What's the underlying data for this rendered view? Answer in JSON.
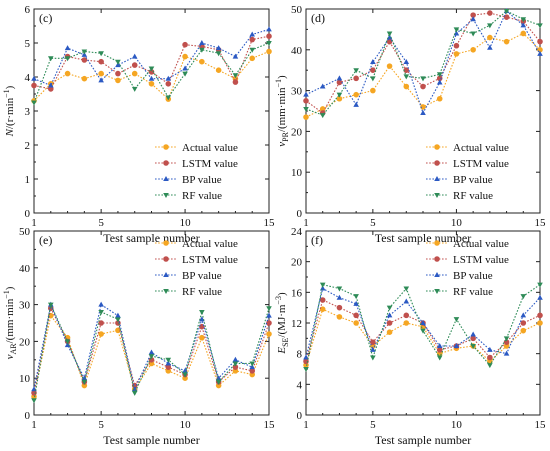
{
  "chart_data": [
    {
      "type": "line",
      "panel_label": "(c)",
      "xlabel": "Test sample number",
      "ylabel_main": "N",
      "ylabel_unit": "/(r·min",
      "ylabel_exp": "−1",
      "ylabel_close": ")",
      "xlim": [
        1,
        15
      ],
      "ylim": [
        0,
        6
      ],
      "xticks": [
        1,
        5,
        10,
        15
      ],
      "yticks": [
        0,
        1,
        2,
        3,
        4,
        5,
        6
      ],
      "x": [
        1,
        2,
        3,
        4,
        5,
        6,
        7,
        8,
        9,
        10,
        11,
        12,
        13,
        14,
        15
      ],
      "legend_position": "bottom-right",
      "series": [
        {
          "name": "Actual value",
          "color": "#f5a623",
          "marker": "circle",
          "values": [
            3.3,
            3.8,
            4.1,
            3.95,
            4.1,
            3.9,
            4.1,
            3.8,
            3.35,
            4.6,
            4.45,
            4.2,
            3.95,
            4.55,
            4.75
          ]
        },
        {
          "name": "LSTM value",
          "color": "#c0504d",
          "marker": "circle",
          "values": [
            3.75,
            3.65,
            4.6,
            4.5,
            4.45,
            4.1,
            4.35,
            4.15,
            3.8,
            4.95,
            4.9,
            4.8,
            3.85,
            5.1,
            5.2
          ]
        },
        {
          "name": "BP value",
          "color": "#2b59c3",
          "marker": "triangle-up",
          "values": [
            3.95,
            3.75,
            4.85,
            4.65,
            3.9,
            4.35,
            4.6,
            3.95,
            3.95,
            4.25,
            5.0,
            4.85,
            4.6,
            5.25,
            5.4
          ]
        },
        {
          "name": "RF value",
          "color": "#2e8b57",
          "marker": "triangle-down",
          "values": [
            3.25,
            4.55,
            4.55,
            4.75,
            4.7,
            4.45,
            3.65,
            4.25,
            3.4,
            4.1,
            4.8,
            4.7,
            4.05,
            4.8,
            5.0
          ]
        }
      ]
    },
    {
      "type": "line",
      "panel_label": "(d)",
      "xlabel": "Test sample number",
      "ylabel_main": "v",
      "ylabel_sub": "PR",
      "ylabel_unit": "/(mm·min",
      "ylabel_exp": "−1",
      "ylabel_close": ")",
      "xlim": [
        1,
        15
      ],
      "ylim": [
        0,
        50
      ],
      "xticks": [
        1,
        5,
        10,
        15
      ],
      "yticks": [
        0,
        10,
        20,
        30,
        40,
        50
      ],
      "x": [
        1,
        2,
        3,
        4,
        5,
        6,
        7,
        8,
        9,
        10,
        11,
        12,
        13,
        14,
        15
      ],
      "legend_position": "bottom-right",
      "series": [
        {
          "name": "Actual value",
          "color": "#f5a623",
          "marker": "circle",
          "values": [
            23.5,
            25.5,
            28,
            29,
            30,
            36,
            31,
            26,
            28,
            39,
            40,
            43,
            42,
            44,
            40
          ]
        },
        {
          "name": "LSTM value",
          "color": "#c0504d",
          "marker": "circle",
          "values": [
            27.5,
            24.5,
            32,
            33,
            35,
            42,
            35,
            31,
            33,
            41,
            48.5,
            49,
            48,
            47,
            42
          ]
        },
        {
          "name": "BP value",
          "color": "#2b59c3",
          "marker": "triangle-up",
          "values": [
            29,
            31,
            33,
            26.5,
            37,
            43,
            37,
            24.5,
            32,
            44,
            47.5,
            40.5,
            49.5,
            46,
            39
          ]
        },
        {
          "name": "RF value",
          "color": "#2e8b57",
          "marker": "triangle-down",
          "values": [
            25.5,
            24,
            29,
            35,
            33,
            44,
            33.5,
            33,
            34,
            45,
            44,
            46,
            49.5,
            47.5,
            46
          ]
        }
      ]
    },
    {
      "type": "line",
      "panel_label": "(e)",
      "xlabel": "Test sample number",
      "ylabel_main": "v",
      "ylabel_sub": "AR",
      "ylabel_unit": "/(mm·min",
      "ylabel_exp": "−1",
      "ylabel_close": ")",
      "xlim": [
        1,
        15
      ],
      "ylim": [
        0,
        50
      ],
      "xticks": [
        1,
        5,
        10,
        15
      ],
      "yticks": [
        0,
        10,
        20,
        30,
        40,
        50
      ],
      "x": [
        1,
        2,
        3,
        4,
        5,
        6,
        7,
        8,
        9,
        10,
        11,
        12,
        13,
        14,
        15
      ],
      "legend_position": "top-right",
      "series": [
        {
          "name": "Actual value",
          "color": "#f5a623",
          "marker": "circle",
          "values": [
            5,
            27,
            21,
            8,
            22,
            23,
            7,
            14,
            12,
            10,
            21,
            8,
            12,
            11,
            22
          ]
        },
        {
          "name": "LSTM value",
          "color": "#c0504d",
          "marker": "circle",
          "values": [
            6,
            29,
            20,
            9,
            25,
            25,
            8,
            15,
            13,
            11,
            24,
            9,
            13,
            12,
            25
          ]
        },
        {
          "name": "BP value",
          "color": "#2b59c3",
          "marker": "triangle-up",
          "values": [
            7,
            30,
            19,
            10,
            30,
            27,
            7,
            17,
            14,
            12,
            26,
            10,
            15,
            13,
            27
          ]
        },
        {
          "name": "RF value",
          "color": "#2e8b57",
          "marker": "triangle-down",
          "values": [
            4,
            30,
            20,
            9,
            28,
            26,
            6,
            16,
            15,
            11,
            28,
            9,
            14,
            14,
            29
          ]
        }
      ]
    },
    {
      "type": "line",
      "panel_label": "(f)",
      "xlabel": "Test sample number",
      "ylabel_main": "E",
      "ylabel_sub": "SE",
      "ylabel_unit": "/(MJ·m",
      "ylabel_exp": "−3",
      "ylabel_close": ")",
      "xlim": [
        1,
        15
      ],
      "ylim": [
        0,
        24
      ],
      "xticks": [
        1,
        5,
        10,
        15
      ],
      "yticks": [
        0,
        4,
        8,
        12,
        16,
        20,
        24
      ],
      "x": [
        1,
        2,
        3,
        4,
        5,
        6,
        7,
        8,
        9,
        10,
        11,
        12,
        13,
        14,
        15
      ],
      "legend_position": "top-right",
      "series": [
        {
          "name": "Actual value",
          "color": "#f5a623",
          "marker": "circle",
          "values": [
            6.5,
            13.8,
            12.8,
            12,
            9,
            10.8,
            12,
            11.5,
            8,
            8.7,
            9,
            7,
            9,
            11,
            12
          ]
        },
        {
          "name": "LSTM value",
          "color": "#c0504d",
          "marker": "circle",
          "values": [
            7,
            15,
            14,
            13,
            9.5,
            12,
            13,
            12,
            8.5,
            9,
            10,
            7.5,
            9.5,
            12,
            13
          ]
        },
        {
          "name": "BP value",
          "color": "#2b59c3",
          "marker": "triangle-up",
          "values": [
            7.5,
            16.5,
            15.3,
            14.5,
            8.5,
            13,
            14.8,
            12,
            9,
            9,
            10.5,
            8.5,
            8,
            13,
            15.3
          ]
        },
        {
          "name": "RF value",
          "color": "#2e8b57",
          "marker": "triangle-down",
          "values": [
            6,
            17,
            16.5,
            15.5,
            7.5,
            14,
            16.5,
            11,
            7.5,
            12.5,
            9,
            6.5,
            10,
            15.5,
            17
          ]
        }
      ]
    }
  ]
}
